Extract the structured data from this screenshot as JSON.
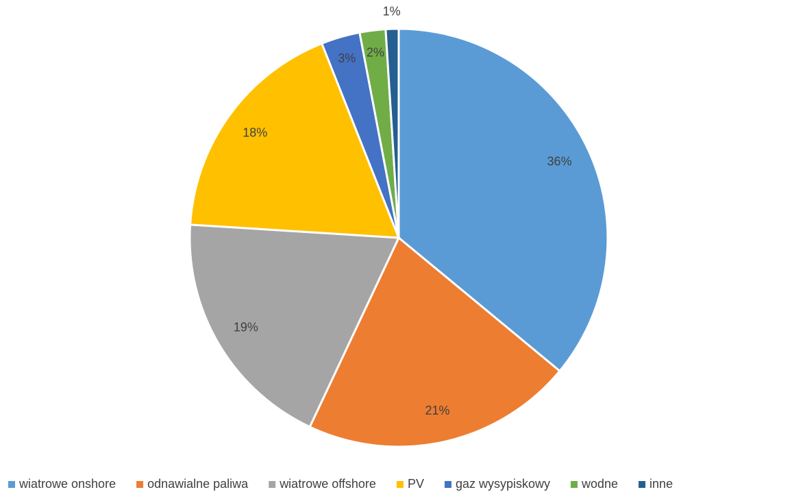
{
  "chart_data": {
    "type": "pie",
    "categories": [
      "wiatrowe onshore",
      "odnawialne paliwa",
      "wiatrowe offshore",
      "PV",
      "gaz wysypiskowy",
      "wodne",
      "inne"
    ],
    "values": [
      36,
      21,
      19,
      18,
      3,
      2,
      1
    ],
    "value_labels": [
      "36%",
      "21%",
      "19%",
      "18%",
      "3%",
      "2%",
      "1%"
    ],
    "colors": [
      "#5b9bd5",
      "#ed7d31",
      "#a5a5a5",
      "#ffc000",
      "#4472c4",
      "#70ad47",
      "#255e91"
    ],
    "legend": "bottom"
  }
}
